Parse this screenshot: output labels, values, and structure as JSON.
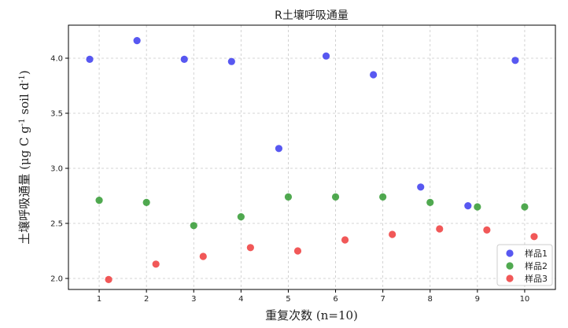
{
  "chart_data": {
    "type": "scatter",
    "title": "R土壤呼吸通量",
    "xlabel": "重复次数 (n=10)",
    "ylabel": "土壤呼吸通量 (μg C g-1 soil d-1)",
    "ylabel_parts": {
      "main": "土壤呼吸通量 (μg C g",
      "sup1": "-1",
      "mid": " soil d",
      "sup2": "-1",
      "end": ")"
    },
    "xlim": [
      0.35,
      10.65
    ],
    "ylim": [
      1.9,
      4.3
    ],
    "xticks": [
      1,
      2,
      3,
      4,
      5,
      6,
      7,
      8,
      9,
      10
    ],
    "yticks": [
      2.0,
      2.5,
      3.0,
      3.5,
      4.0
    ],
    "grid": true,
    "legend_position": "bottom-right",
    "series": [
      {
        "name": "样品1",
        "color": "#3333ee",
        "x": [
          0.8,
          1.8,
          2.8,
          3.8,
          4.8,
          5.8,
          6.8,
          7.8,
          8.8,
          9.8
        ],
        "y": [
          3.99,
          4.16,
          3.99,
          3.97,
          3.18,
          4.02,
          3.85,
          2.83,
          2.66,
          3.98
        ]
      },
      {
        "name": "样品2",
        "color": "#2a962a",
        "x": [
          1.0,
          2.0,
          3.0,
          4.0,
          5.0,
          6.0,
          7.0,
          8.0,
          9.0,
          10.0
        ],
        "y": [
          2.71,
          2.69,
          2.48,
          2.56,
          2.74,
          2.74,
          2.74,
          2.69,
          2.65,
          2.65
        ]
      },
      {
        "name": "样品3",
        "color": "#ee3333",
        "x": [
          1.2,
          2.2,
          3.2,
          4.2,
          5.2,
          6.2,
          7.2,
          8.2,
          9.2,
          10.2
        ],
        "y": [
          1.99,
          2.13,
          2.2,
          2.28,
          2.25,
          2.35,
          2.4,
          2.45,
          2.44,
          2.38
        ]
      }
    ]
  }
}
